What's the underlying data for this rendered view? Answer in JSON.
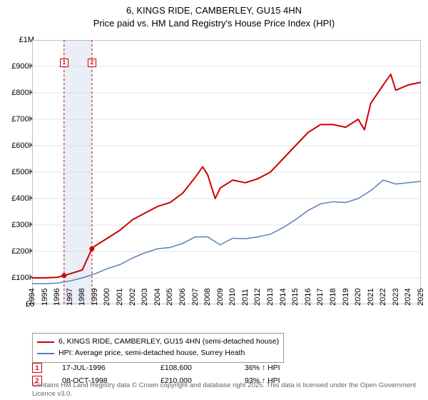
{
  "title_line1": "6, KINGS RIDE, CAMBERLEY, GU15 4HN",
  "title_line2": "Price paid vs. HM Land Registry's House Price Index (HPI)",
  "chart": {
    "type": "line",
    "background_color": "#ffffff",
    "plot_border_color": "#888888",
    "grid_color": "#cccccc",
    "x": {
      "min": 1994,
      "max": 2025,
      "step": 1
    },
    "y": {
      "min": 0,
      "max": 1000000,
      "step": 100000,
      "tick_labels": [
        "£0",
        "£100K",
        "£200K",
        "£300K",
        "£400K",
        "£500K",
        "£600K",
        "£700K",
        "£800K",
        "£900K",
        "£1M"
      ]
    },
    "highlight_band": {
      "from": 1996.5,
      "to": 1998.8,
      "fill": "#e9eef7"
    },
    "marker_guides": [
      {
        "x": 1996.55,
        "color": "#cc0000",
        "dash": "3,3"
      },
      {
        "x": 1998.77,
        "color": "#cc0000",
        "dash": "3,3"
      }
    ],
    "plot_markers": [
      {
        "n": "1",
        "x": 1996.55,
        "y_label_offset": 930000
      },
      {
        "n": "2",
        "x": 1998.77,
        "y_label_offset": 930000
      }
    ],
    "tx_points": [
      {
        "x": 1996.55,
        "y": 108600,
        "color": "#cc0000"
      },
      {
        "x": 1998.77,
        "y": 210000,
        "color": "#cc0000"
      }
    ],
    "series": [
      {
        "name": "6, KINGS RIDE, CAMBERLEY, GU15 4HN (semi-detached house)",
        "color": "#cc0000",
        "width": 2,
        "points": [
          [
            1994,
            100000
          ],
          [
            1995,
            100000
          ],
          [
            1996,
            102000
          ],
          [
            1996.55,
            108600
          ],
          [
            1997,
            115000
          ],
          [
            1998,
            130000
          ],
          [
            1998.77,
            210000
          ],
          [
            1999,
            220000
          ],
          [
            2000,
            250000
          ],
          [
            2001,
            280000
          ],
          [
            2002,
            320000
          ],
          [
            2003,
            345000
          ],
          [
            2004,
            370000
          ],
          [
            2005,
            385000
          ],
          [
            2006,
            420000
          ],
          [
            2007,
            480000
          ],
          [
            2007.6,
            520000
          ],
          [
            2008,
            490000
          ],
          [
            2008.6,
            400000
          ],
          [
            2009,
            440000
          ],
          [
            2010,
            470000
          ],
          [
            2011,
            460000
          ],
          [
            2012,
            475000
          ],
          [
            2013,
            500000
          ],
          [
            2014,
            550000
          ],
          [
            2015,
            600000
          ],
          [
            2016,
            650000
          ],
          [
            2017,
            680000
          ],
          [
            2018,
            680000
          ],
          [
            2019,
            670000
          ],
          [
            2020,
            700000
          ],
          [
            2020.5,
            660000
          ],
          [
            2021,
            760000
          ],
          [
            2022,
            830000
          ],
          [
            2022.6,
            870000
          ],
          [
            2023,
            810000
          ],
          [
            2024,
            830000
          ],
          [
            2025,
            840000
          ]
        ]
      },
      {
        "name": "HPI: Average price, semi-detached house, Surrey Heath",
        "color": "#5a7fb5",
        "width": 1.5,
        "points": [
          [
            1994,
            78000
          ],
          [
            1995,
            78000
          ],
          [
            1996,
            80000
          ],
          [
            1997,
            88000
          ],
          [
            1998,
            100000
          ],
          [
            1999,
            115000
          ],
          [
            2000,
            135000
          ],
          [
            2001,
            150000
          ],
          [
            2002,
            175000
          ],
          [
            2003,
            195000
          ],
          [
            2004,
            210000
          ],
          [
            2005,
            215000
          ],
          [
            2006,
            230000
          ],
          [
            2007,
            255000
          ],
          [
            2008,
            255000
          ],
          [
            2009,
            225000
          ],
          [
            2010,
            250000
          ],
          [
            2011,
            248000
          ],
          [
            2012,
            255000
          ],
          [
            2013,
            265000
          ],
          [
            2014,
            290000
          ],
          [
            2015,
            320000
          ],
          [
            2016,
            355000
          ],
          [
            2017,
            380000
          ],
          [
            2018,
            388000
          ],
          [
            2019,
            385000
          ],
          [
            2020,
            400000
          ],
          [
            2021,
            430000
          ],
          [
            2022,
            470000
          ],
          [
            2023,
            455000
          ],
          [
            2024,
            460000
          ],
          [
            2025,
            465000
          ]
        ]
      }
    ]
  },
  "legend": {
    "items": [
      {
        "label": "6, KINGS RIDE, CAMBERLEY, GU15 4HN (semi-detached house)",
        "color": "#cc0000"
      },
      {
        "label": "HPI: Average price, semi-detached house, Surrey Heath",
        "color": "#5a7fb5"
      }
    ]
  },
  "transactions": [
    {
      "n": "1",
      "date": "17-JUL-1996",
      "price": "£108,600",
      "delta": "36% ↑ HPI"
    },
    {
      "n": "2",
      "date": "08-OCT-1998",
      "price": "£210,000",
      "delta": "93% ↑ HPI"
    }
  ],
  "footer_line": "Contains HM Land Registry data © Crown copyright and database right 2025. This data is licensed under the Open Government Licence v3.0."
}
